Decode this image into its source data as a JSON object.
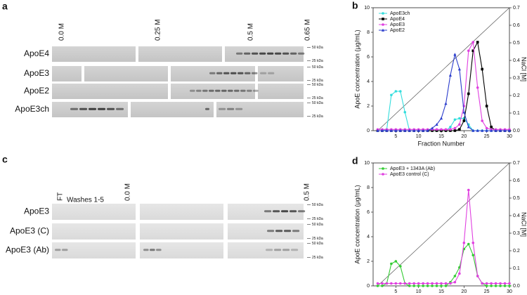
{
  "panels": {
    "a": {
      "label": "a",
      "columns": [
        "0.0 M",
        "0.25 M",
        "0.5 M",
        "0.65 M"
      ],
      "rows": [
        {
          "name": "ApoE4",
          "markers": [
            "50 kDa",
            "25 kDa"
          ]
        },
        {
          "name": "ApoE3",
          "markers": [
            "50 kDa",
            "25 kDa"
          ]
        },
        {
          "name": "ApoE2",
          "markers": [
            "50 kDa",
            "25 kDa"
          ]
        },
        {
          "name": "ApoE3ch",
          "markers": [
            "50 kDa",
            "25 kDa"
          ]
        }
      ]
    },
    "c": {
      "label": "c",
      "columns": [
        "FT",
        "Washes 1-5",
        "0.0 M",
        "0.5 M"
      ],
      "rows": [
        {
          "name": "ApoE3",
          "markers": [
            "50 kDa",
            "25 kDa"
          ]
        },
        {
          "name": "ApoE3 (C)",
          "markers": [
            "50 kDa",
            "25 kDa"
          ]
        },
        {
          "name": "ApoE3 (Ab)",
          "markers": [
            "50 kDa",
            "25 kDa"
          ]
        }
      ]
    }
  },
  "chart_data": [
    {
      "type": "line",
      "label": "b",
      "xlabel": "Fraction Number",
      "ylabel": "ApoE concentration (μg/mL)",
      "y2label": "NaCl [M]",
      "x": [
        1,
        2,
        3,
        4,
        5,
        6,
        7,
        8,
        9,
        10,
        11,
        12,
        13,
        14,
        15,
        16,
        17,
        18,
        19,
        20,
        21,
        22,
        23,
        24,
        25,
        26,
        27,
        28,
        29,
        30
      ],
      "xlim": [
        0,
        30
      ],
      "xticks": [
        5,
        10,
        15,
        20,
        25,
        30
      ],
      "ylim": [
        0,
        10
      ],
      "yticks": [
        0,
        2,
        4,
        6,
        8,
        10
      ],
      "y2lim": [
        0,
        0.7
      ],
      "y2ticks": [
        {
          "value": 0,
          "label": "0.0"
        },
        0.1,
        0.2,
        0.3,
        0.4,
        0.5,
        0.6,
        0.7
      ],
      "legend": "upper left",
      "gradient": {
        "x": [
          1,
          30
        ],
        "values": [
          0,
          0.7
        ],
        "axis": "y2",
        "color": "#555555"
      },
      "series": [
        {
          "name": "ApoE3ch",
          "color": "#33dddd",
          "marker": "circle",
          "values": [
            0,
            0,
            0.1,
            2.9,
            3.2,
            3.2,
            1.5,
            0,
            0,
            0,
            0,
            0,
            0,
            0,
            0,
            0,
            0.3,
            0.9,
            1.0,
            1.0,
            0.5,
            0,
            0,
            0,
            0,
            0,
            0,
            0,
            0,
            0
          ]
        },
        {
          "name": "ApoE4",
          "color": "#000000",
          "marker": "square",
          "values": [
            0,
            0,
            0,
            0,
            0,
            0,
            0,
            0,
            0,
            0,
            0,
            0,
            0,
            0,
            0,
            0,
            0,
            0,
            0.1,
            0.8,
            3.0,
            6.5,
            7.2,
            5.0,
            2.0,
            0.3,
            0,
            0,
            0,
            0
          ]
        },
        {
          "name": "ApoE3",
          "color": "#e040e0",
          "marker": "circle",
          "values": [
            0.1,
            0.1,
            0.1,
            0.1,
            0.1,
            0.1,
            0.1,
            0.1,
            0.1,
            0.1,
            0.1,
            0.1,
            0.1,
            0.1,
            0.1,
            0.1,
            0.1,
            0.2,
            0.5,
            2.0,
            6.5,
            7.2,
            3.5,
            0.8,
            0.2,
            0.1,
            0.1,
            0.1,
            0.1,
            0.1
          ]
        },
        {
          "name": "ApoE2",
          "color": "#2a3ccc",
          "marker": "triangle",
          "values": [
            0,
            0,
            0,
            0,
            0,
            0,
            0,
            0,
            0,
            0,
            0,
            0,
            0.2,
            0.5,
            1.0,
            2.2,
            4.5,
            6.2,
            5.0,
            1.5,
            0.3,
            0,
            0,
            0,
            0,
            0,
            0,
            0,
            0,
            0
          ]
        }
      ]
    },
    {
      "type": "line",
      "label": "d",
      "xlabel": "Fraction Number",
      "ylabel": "ApoE concentration (μg/mL)",
      "y2label": "NaCl [M]",
      "x": [
        1,
        2,
        3,
        4,
        5,
        6,
        7,
        8,
        9,
        10,
        11,
        12,
        13,
        14,
        15,
        16,
        17,
        18,
        19,
        20,
        21,
        22,
        23,
        24,
        25,
        26,
        27,
        28,
        29,
        30
      ],
      "xlim": [
        0,
        30
      ],
      "xticks": [
        5,
        10,
        15,
        20,
        25,
        30
      ],
      "ylim": [
        0,
        10
      ],
      "yticks": [
        0,
        2,
        4,
        6,
        8,
        10
      ],
      "y2lim": [
        0,
        0.7
      ],
      "y2ticks": [
        {
          "value": 0,
          "label": "0.0"
        },
        0.1,
        0.2,
        0.3,
        0.4,
        0.5,
        0.6,
        0.7
      ],
      "legend": "upper left",
      "gradient": {
        "x": [
          1,
          30
        ],
        "values": [
          0,
          0.7
        ],
        "axis": "y2",
        "color": "#555555"
      },
      "series": [
        {
          "name": "ApoE3 + 1343A (Ab)",
          "color": "#33cc33",
          "marker": "circle",
          "values": [
            0,
            0,
            0.2,
            1.8,
            2.0,
            1.6,
            0.2,
            0,
            0,
            0,
            0,
            0,
            0,
            0,
            0,
            0,
            0.3,
            0.8,
            1.5,
            3.0,
            3.4,
            2.5,
            0.8,
            0.2,
            0,
            0,
            0,
            0,
            0,
            0
          ]
        },
        {
          "name": "ApoE3 control (C)",
          "color": "#e040e0",
          "marker": "circle",
          "values": [
            0.2,
            0.2,
            0.2,
            0.2,
            0.2,
            0.2,
            0.2,
            0.2,
            0.2,
            0.2,
            0.2,
            0.2,
            0.2,
            0.2,
            0.2,
            0.2,
            0.2,
            0.3,
            1.0,
            3.5,
            7.8,
            3.5,
            0.8,
            0.2,
            0.2,
            0.2,
            0.2,
            0.2,
            0.2,
            0.2
          ]
        }
      ]
    }
  ]
}
